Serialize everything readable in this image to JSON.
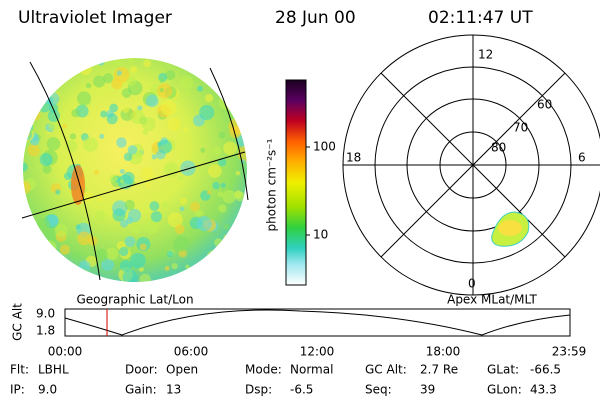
{
  "header": {
    "title": "Ultraviolet Imager",
    "date": "28 Jun 00",
    "time": "02:11:47 UT"
  },
  "colorbar": {
    "label": "photon cm⁻²s⁻¹",
    "ticks": [
      "100",
      "10"
    ]
  },
  "polar": {
    "mlt_labels": [
      "12",
      "18",
      "6",
      "0"
    ],
    "lat_labels": [
      "60",
      "70",
      "80"
    ]
  },
  "captions": {
    "left": "Geographic Lat/Lon",
    "right": "Apex MLat/MLT"
  },
  "alt_plot": {
    "ylabel": "GC Alt",
    "yticks": [
      "9.0",
      "1.8"
    ],
    "xticks": [
      "00:00",
      "06:00",
      "12:00",
      "18:00",
      "23:59"
    ]
  },
  "info": {
    "rows": [
      [
        [
          "Flt:",
          "LBHL"
        ],
        [
          "Door:",
          "Open"
        ],
        [
          "Mode:",
          "Normal"
        ],
        [
          "GC Alt:",
          "2.7 Re"
        ],
        [
          "GLat:",
          "-66.5"
        ]
      ],
      [
        [
          "IP:",
          "9.0"
        ],
        [
          "Gain:",
          "13"
        ],
        [
          "Dsp:",
          "-6.5"
        ],
        [
          "Seq:",
          "39"
        ],
        [
          "GLon:",
          "43.3"
        ]
      ]
    ]
  }
}
